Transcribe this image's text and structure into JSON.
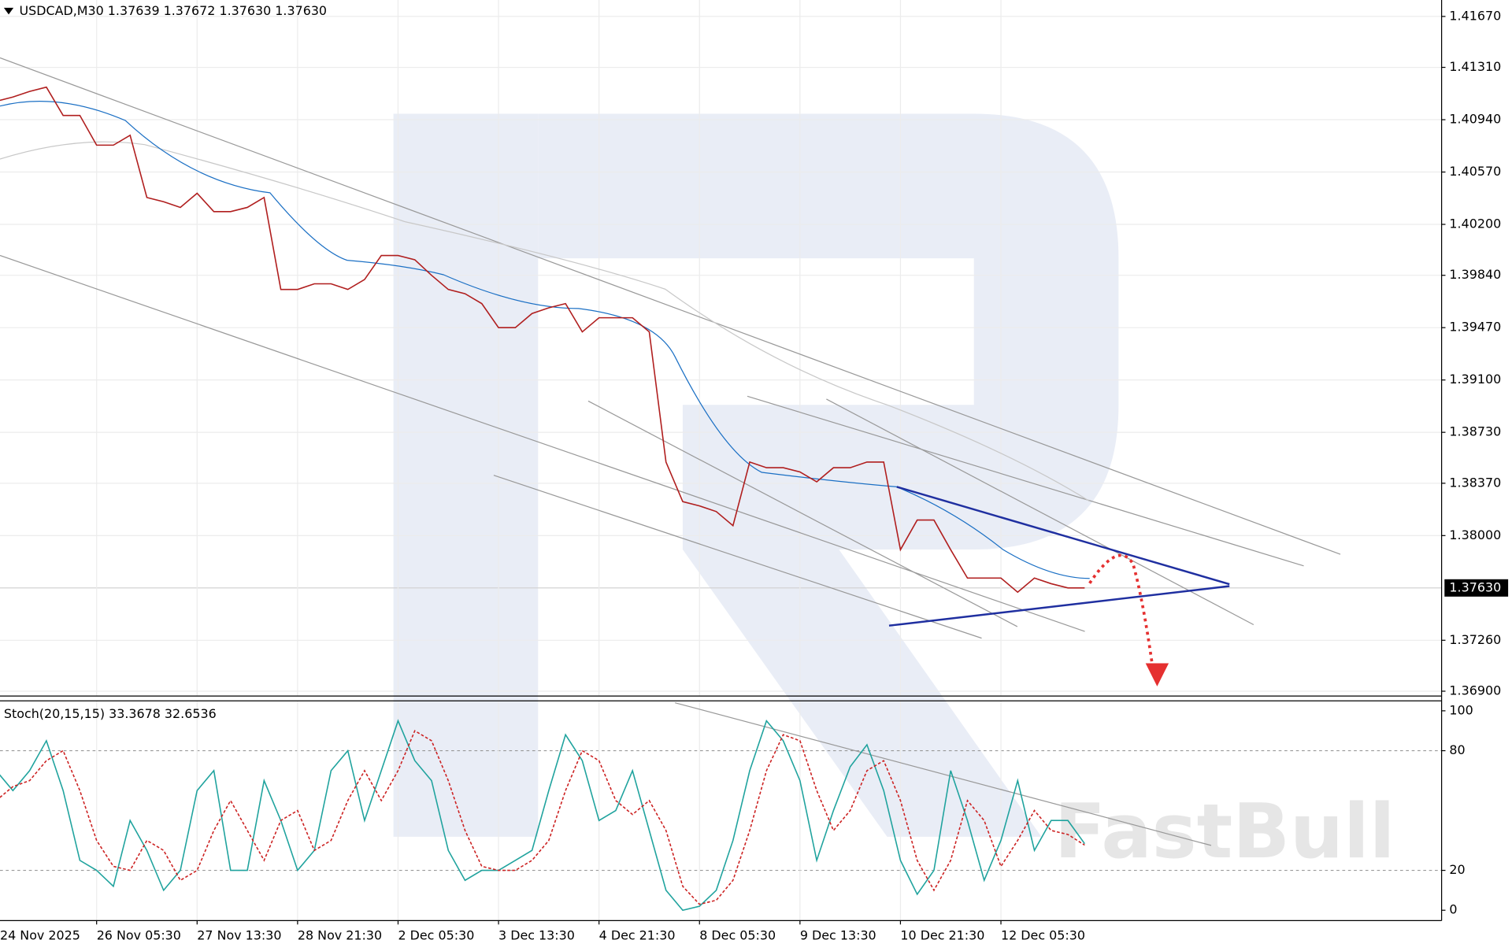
{
  "chart_data": [
    {
      "type": "line",
      "title": "USDCAD,M30  1.37639 1.37672 1.37630 1.37630",
      "color": "#b01e1e",
      "values": [
        1.4107,
        1.411,
        1.4114,
        1.4117,
        1.4097,
        1.4097,
        1.4076,
        1.4076,
        1.4083,
        1.4039,
        1.4036,
        1.4032,
        1.4042,
        1.4029,
        1.4029,
        1.4032,
        1.4039,
        1.3974,
        1.3974,
        1.3978,
        1.3978,
        1.3974,
        1.3981,
        1.3998,
        1.3998,
        1.3995,
        1.3984,
        1.3974,
        1.3971,
        1.3964,
        1.3947,
        1.3947,
        1.3957,
        1.3961,
        1.3964,
        1.3944,
        1.3954,
        1.3954,
        1.3954,
        1.3944,
        1.3852,
        1.3824,
        1.3821,
        1.3817,
        1.3807,
        1.3852,
        1.3848,
        1.3848,
        1.3845,
        1.3838,
        1.3848,
        1.3848,
        1.3852,
        1.3852,
        1.379,
        1.3811,
        1.3811,
        1.379,
        1.377,
        1.377,
        1.377,
        1.376,
        1.377,
        1.3766,
        1.3763,
        1.3763
      ],
      "ylim": [
        1.36866,
        1.41786
      ],
      "yticks": [
        {
          "value": 1.4167,
          "label": "1.41670"
        },
        {
          "value": 1.4131,
          "label": "1.41310"
        },
        {
          "value": 1.4094,
          "label": "1.40940"
        },
        {
          "value": 1.4057,
          "label": "1.40570"
        },
        {
          "value": 1.402,
          "label": "1.40200"
        },
        {
          "value": 1.3984,
          "label": "1.39840"
        },
        {
          "value": 1.3947,
          "label": "1.39470"
        },
        {
          "value": 1.391,
          "label": "1.39100"
        },
        {
          "value": 1.3873,
          "label": "1.38730"
        },
        {
          "value": 1.3837,
          "label": "1.38370"
        },
        {
          "value": 1.38,
          "label": "1.38000"
        },
        {
          "value": 1.3726,
          "label": "1.37260"
        },
        {
          "value": 1.369,
          "label": "1.36900"
        }
      ],
      "current_price": {
        "value": 1.3763,
        "label": "1.37630"
      },
      "watermark": "FastBull",
      "grid": true
    },
    {
      "type": "line",
      "title": "Stoch(20,15,15) 33.3678 32.6536",
      "categories": [
        "24 Nov 2025",
        null,
        null,
        null,
        null,
        null,
        "26 Nov 05:30",
        null,
        null,
        null,
        null,
        null,
        "27 Nov 13:30",
        null,
        null,
        null,
        null,
        null,
        "28 Nov 21:30",
        null,
        null,
        null,
        null,
        null,
        "2 Dec 05:30",
        null,
        null,
        null,
        null,
        null,
        "3 Dec 13:30",
        null,
        null,
        null,
        null,
        null,
        "4 Dec 21:30",
        null,
        null,
        null,
        null,
        null,
        "8 Dec 05:30",
        null,
        null,
        null,
        null,
        null,
        "9 Dec 13:30",
        null,
        null,
        null,
        null,
        null,
        "10 Dec 21:30",
        null,
        null,
        null,
        null,
        null,
        "12 Dec 05:30",
        null,
        null,
        null,
        null,
        null
      ],
      "series": [
        {
          "color": "#20a39e",
          "values": [
            70,
            60,
            70,
            85,
            60,
            25,
            20,
            12,
            45,
            30,
            10,
            20,
            60,
            70,
            20,
            20,
            65,
            45,
            20,
            30,
            70,
            80,
            45,
            70,
            95,
            75,
            65,
            30,
            15,
            20,
            20,
            25,
            30,
            60,
            88,
            75,
            45,
            50,
            70,
            40,
            10,
            0,
            2,
            10,
            35,
            70,
            95,
            85,
            65,
            25,
            50,
            72,
            83,
            60,
            25,
            8,
            20,
            70,
            45,
            15,
            35,
            65,
            30,
            45,
            45,
            33.3678
          ]
        },
        {
          "color": "#cc2222",
          "dashed": true,
          "values": [
            55,
            62,
            65,
            75,
            80,
            60,
            35,
            22,
            20,
            35,
            30,
            15,
            20,
            40,
            55,
            40,
            25,
            45,
            50,
            30,
            35,
            55,
            70,
            55,
            70,
            90,
            85,
            65,
            40,
            22,
            20,
            20,
            25,
            35,
            60,
            80,
            75,
            55,
            48,
            55,
            40,
            12,
            3,
            5,
            15,
            40,
            70,
            88,
            85,
            60,
            40,
            50,
            70,
            75,
            55,
            25,
            10,
            25,
            55,
            45,
            22,
            35,
            50,
            40,
            38,
            32.6536
          ]
        }
      ],
      "ylim": [
        -5.2,
        105
      ],
      "yticks": [
        100,
        80,
        20,
        0
      ],
      "dashed_grid": [
        80,
        20
      ]
    }
  ]
}
